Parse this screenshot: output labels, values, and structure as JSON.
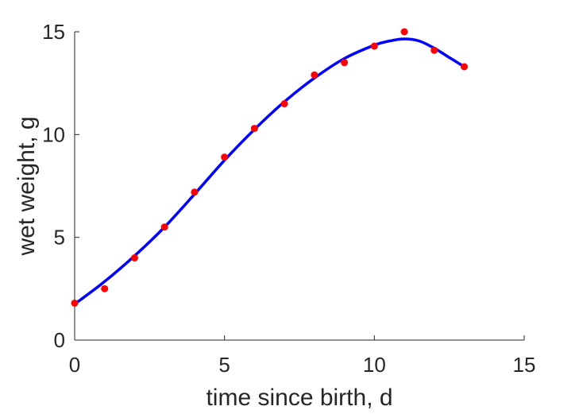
{
  "chart_data": {
    "type": "scatter",
    "title": "",
    "xlabel": "time since birth, d",
    "ylabel": "wet weight, g",
    "xlim": [
      0,
      15
    ],
    "ylim": [
      0,
      15
    ],
    "xticks": [
      0,
      5,
      10,
      15
    ],
    "yticks": [
      0,
      5,
      10,
      15
    ],
    "xtick_labels": [
      "0",
      "5",
      "10",
      "15"
    ],
    "ytick_labels": [
      "0",
      "5",
      "10",
      "15"
    ],
    "grid": false,
    "series": [
      {
        "kind": "points",
        "color": "#ff0000",
        "x": [
          0,
          1,
          2,
          3,
          4,
          5,
          6,
          7,
          8,
          9,
          10,
          11,
          12,
          13
        ],
        "y": [
          1.8,
          2.5,
          4.0,
          5.5,
          7.2,
          8.9,
          10.3,
          11.5,
          12.9,
          13.5,
          14.3,
          15.0,
          14.1,
          13.3
        ]
      },
      {
        "kind": "fitted-curve",
        "color": "#0000ff",
        "x": [
          0,
          1,
          2,
          3,
          4,
          5,
          6,
          7,
          8,
          9,
          10,
          10.5,
          11,
          11.5,
          12,
          12.5,
          13
        ],
        "y": [
          1.75,
          2.85,
          4.1,
          5.5,
          7.1,
          8.75,
          10.25,
          11.6,
          12.75,
          13.7,
          14.35,
          14.55,
          14.65,
          14.55,
          14.2,
          13.75,
          13.3
        ]
      }
    ]
  }
}
